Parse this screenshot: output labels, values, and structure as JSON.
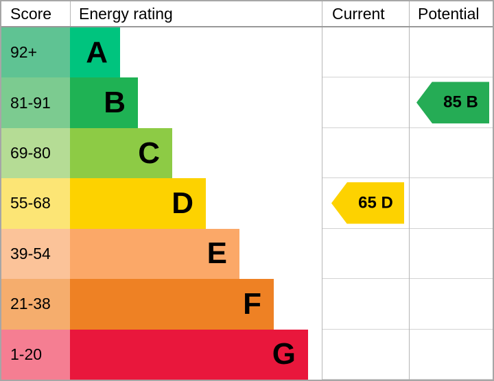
{
  "header": {
    "score": "Score",
    "rating": "Energy rating",
    "current": "Current",
    "potential": "Potential"
  },
  "chart_data": {
    "type": "bar",
    "title": "Energy rating",
    "orientation": "horizontal",
    "categories": [
      "A",
      "B",
      "C",
      "D",
      "E",
      "F",
      "G"
    ],
    "score_ranges": [
      "92+",
      "81-91",
      "69-80",
      "55-68",
      "39-54",
      "21-38",
      "1-20"
    ],
    "bar_colors": [
      "#00c47e",
      "#1fb254",
      "#8dcb45",
      "#fdd200",
      "#fba868",
      "#ee8124",
      "#e9173c"
    ],
    "score_cell_colors": [
      "#5fc393",
      "#7ccb90",
      "#b5dc95",
      "#fce575",
      "#fbc399",
      "#f5ad6d",
      "#f57e92"
    ],
    "bar_widths": [
      "73px",
      "99px",
      "149px",
      "198px",
      "247px",
      "297px",
      "347px"
    ],
    "markers": {
      "current": {
        "label": "65 D",
        "value": 65,
        "band": "D",
        "band_index": 3,
        "color": "#fdd200"
      },
      "potential": {
        "label": "85 B",
        "value": 85,
        "band": "B",
        "band_index": 1,
        "color": "#25ac55"
      }
    }
  }
}
